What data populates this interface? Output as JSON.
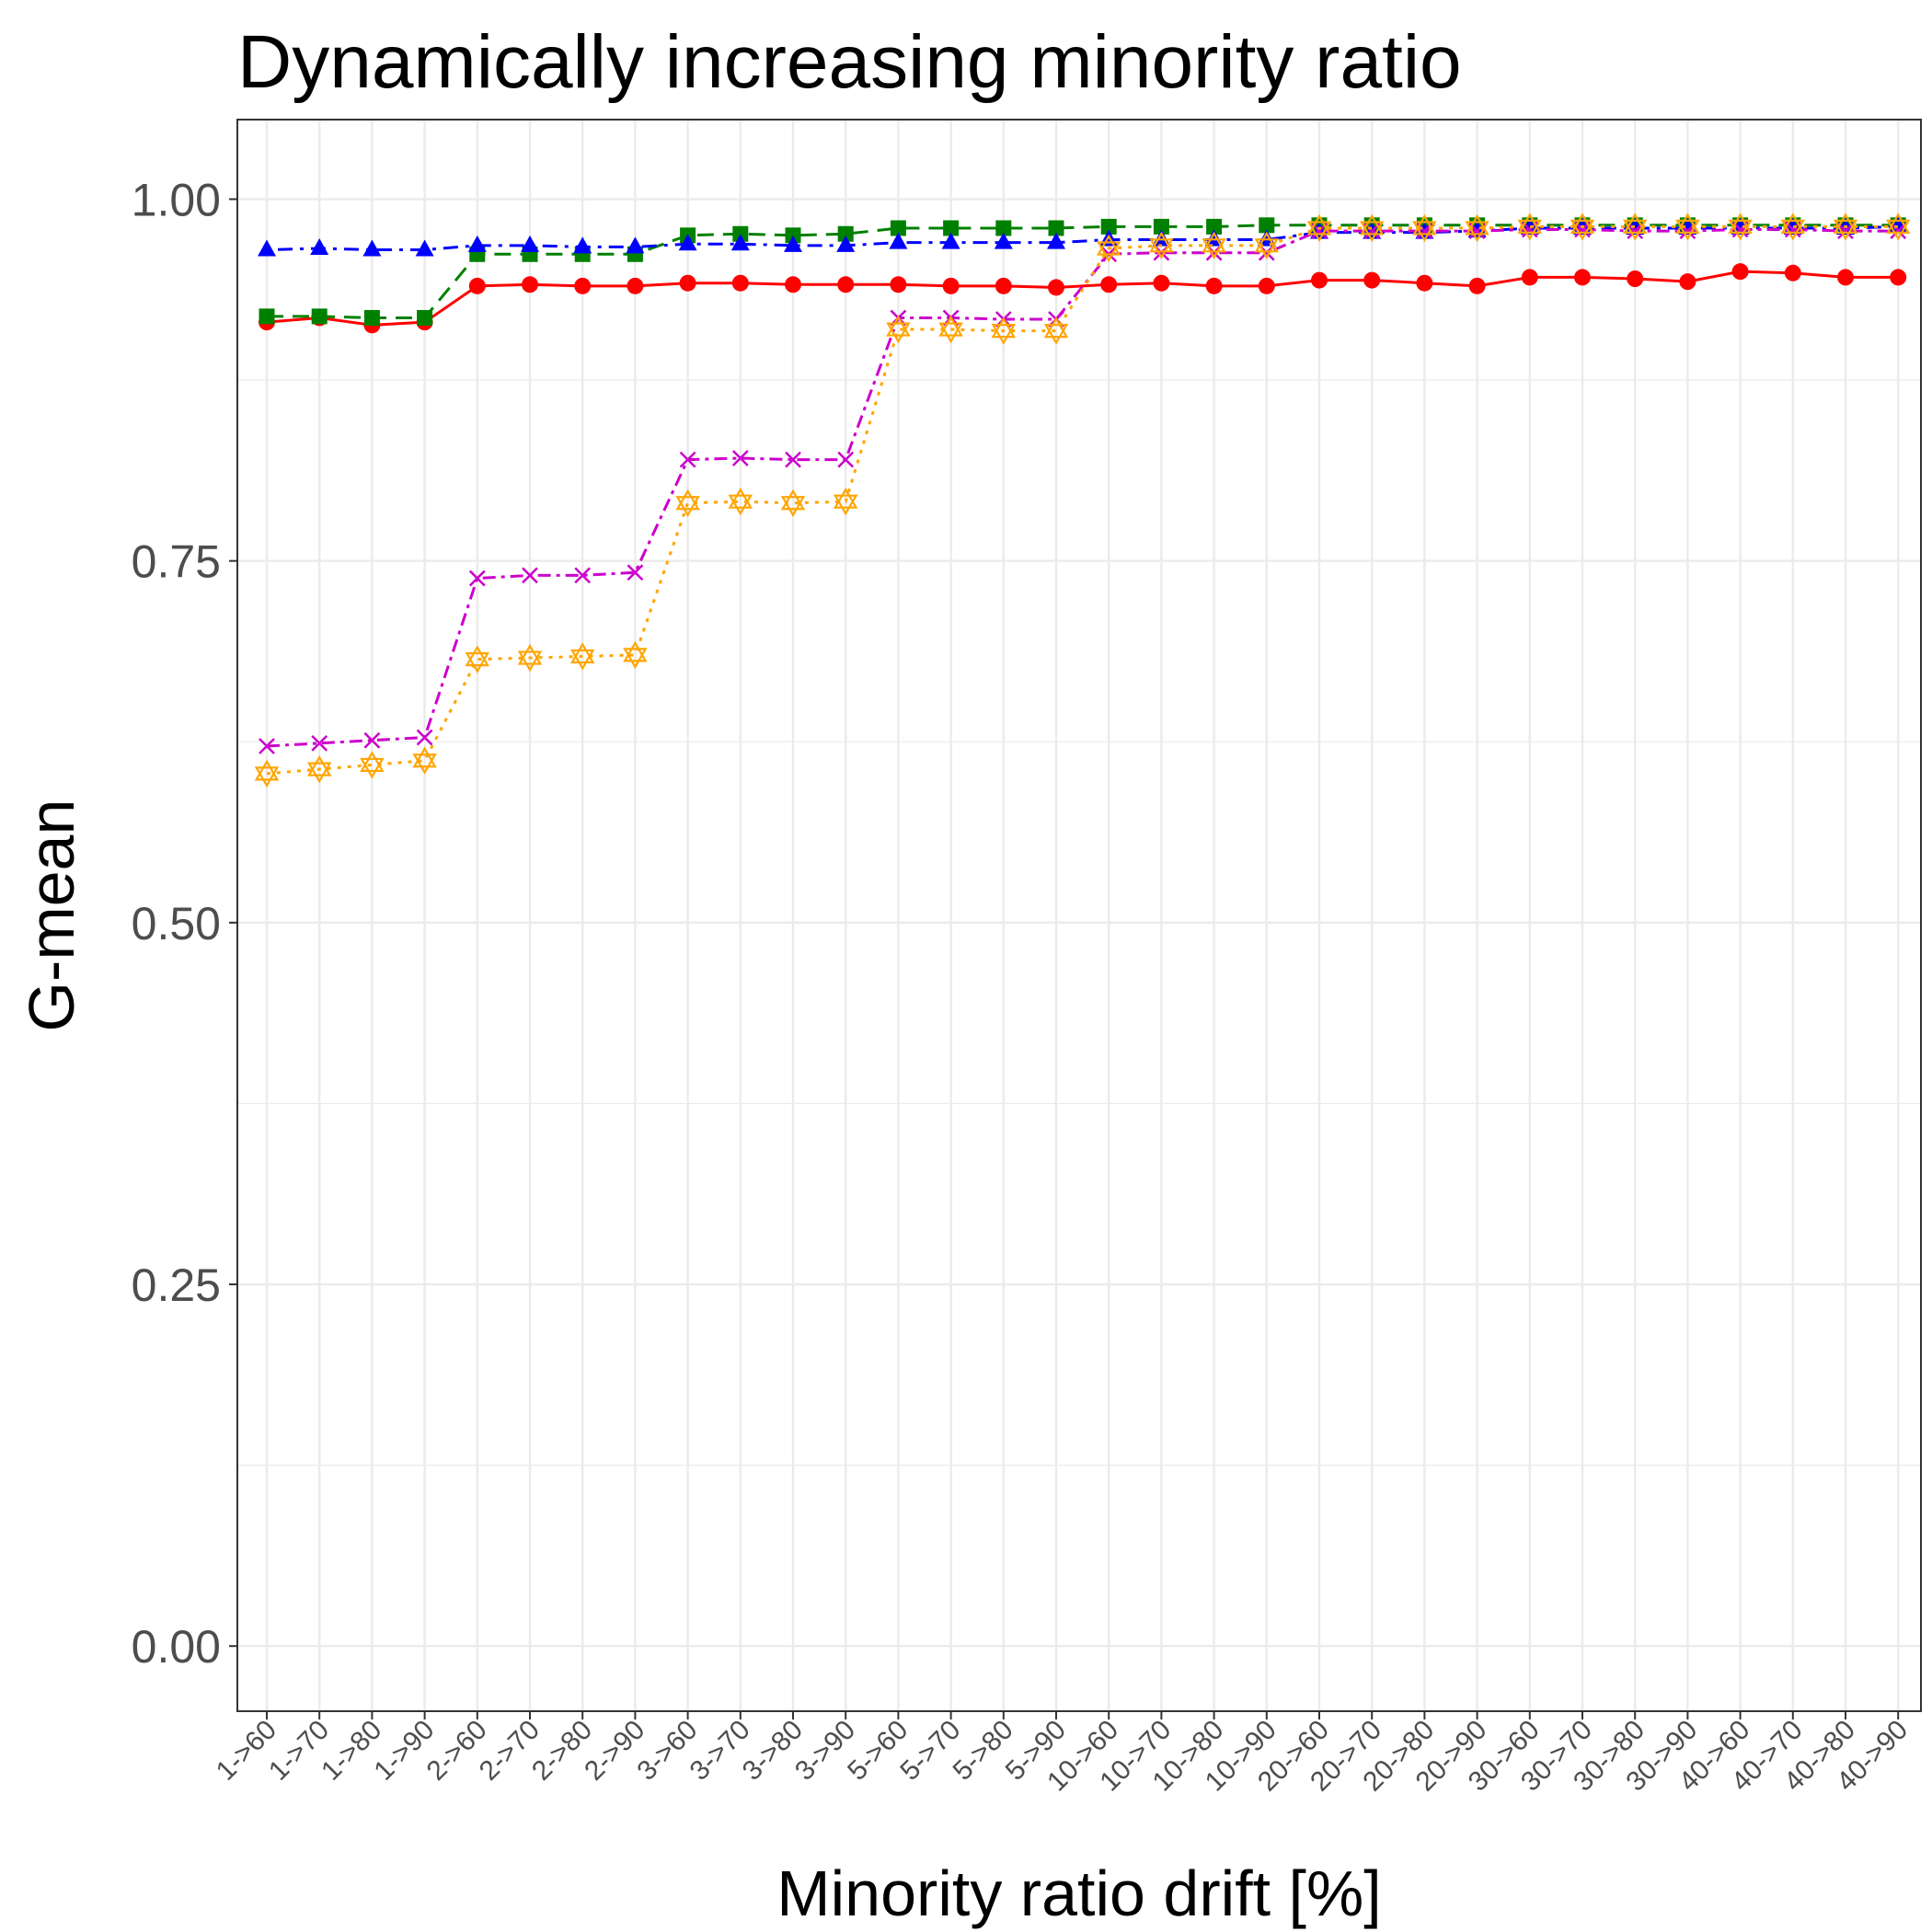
{
  "chart_data": {
    "type": "line",
    "title": "Dynamically increasing minority ratio",
    "xlabel": "Minority ratio drift [%]",
    "ylabel": "G-mean",
    "ylim": [
      -0.045,
      1.055
    ],
    "yticks": [
      0,
      0.25,
      0.5,
      0.75,
      1.0
    ],
    "ytick_labels": [
      "0.00",
      "0.25",
      "0.50",
      "0.75",
      "1.00"
    ],
    "grid": true,
    "legend": "none",
    "categories": [
      "1->60",
      "1->70",
      "1->80",
      "1->90",
      "2->60",
      "2->70",
      "2->80",
      "2->90",
      "3->60",
      "3->70",
      "3->80",
      "3->90",
      "5->60",
      "5->70",
      "5->80",
      "5->90",
      "10->60",
      "10->70",
      "10->80",
      "10->90",
      "20->60",
      "20->70",
      "20->80",
      "20->90",
      "30->60",
      "30->70",
      "30->80",
      "30->90",
      "40->60",
      "40->70",
      "40->80",
      "40->90"
    ],
    "series": [
      {
        "color": "#ff0000",
        "marker": "circle",
        "dash": "solid",
        "values": [
          0.915,
          0.918,
          0.913,
          0.915,
          0.94,
          0.941,
          0.94,
          0.94,
          0.942,
          0.942,
          0.941,
          0.941,
          0.941,
          0.94,
          0.94,
          0.939,
          0.941,
          0.942,
          0.94,
          0.94,
          0.944,
          0.944,
          0.942,
          0.94,
          0.946,
          0.946,
          0.945,
          0.943,
          0.95,
          0.949,
          0.946,
          0.946
        ]
      },
      {
        "color": "#008000",
        "marker": "square",
        "dash": "dashed",
        "values": [
          0.919,
          0.919,
          0.918,
          0.918,
          0.962,
          0.962,
          0.962,
          0.962,
          0.975,
          0.976,
          0.975,
          0.976,
          0.98,
          0.98,
          0.98,
          0.98,
          0.981,
          0.981,
          0.981,
          0.982,
          0.982,
          0.982,
          0.982,
          0.982,
          0.982,
          0.982,
          0.982,
          0.982,
          0.982,
          0.982,
          0.982,
          0.982
        ]
      },
      {
        "color": "#0000ff",
        "marker": "triangle",
        "dash": "dotdash",
        "values": [
          0.965,
          0.966,
          0.965,
          0.965,
          0.968,
          0.968,
          0.967,
          0.967,
          0.969,
          0.969,
          0.968,
          0.968,
          0.97,
          0.97,
          0.97,
          0.97,
          0.972,
          0.972,
          0.972,
          0.972,
          0.977,
          0.977,
          0.977,
          0.978,
          0.98,
          0.98,
          0.98,
          0.98,
          0.98,
          0.98,
          0.98,
          0.981
        ]
      },
      {
        "color": "#cc00cc",
        "marker": "cross",
        "dash": "twodash",
        "values": [
          0.622,
          0.624,
          0.626,
          0.628,
          0.738,
          0.74,
          0.74,
          0.742,
          0.82,
          0.821,
          0.82,
          0.82,
          0.918,
          0.918,
          0.917,
          0.917,
          0.962,
          0.963,
          0.963,
          0.963,
          0.978,
          0.978,
          0.978,
          0.978,
          0.979,
          0.979,
          0.978,
          0.978,
          0.979,
          0.979,
          0.978,
          0.978
        ]
      },
      {
        "color": "#ffa500",
        "marker": "star",
        "dash": "dotted",
        "values": [
          0.603,
          0.606,
          0.609,
          0.612,
          0.682,
          0.683,
          0.684,
          0.685,
          0.79,
          0.791,
          0.79,
          0.791,
          0.91,
          0.91,
          0.909,
          0.909,
          0.966,
          0.968,
          0.968,
          0.968,
          0.98,
          0.98,
          0.98,
          0.98,
          0.981,
          0.981,
          0.981,
          0.981,
          0.981,
          0.981,
          0.981,
          0.981
        ]
      }
    ]
  }
}
